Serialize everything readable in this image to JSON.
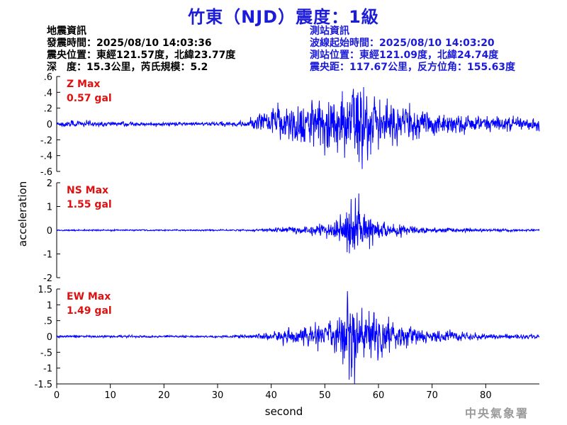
{
  "header": {
    "title": "竹東（NJD）震度：1級"
  },
  "event_info": {
    "heading": "地震資訊",
    "origin_time": "發震時間：2025/08/10 14:03:36",
    "epicenter": "震央位置：東經121.57度，北緯23.77度",
    "depth_magnitude": "深　度：15.3公里，芮氏規模：5.2"
  },
  "station_info": {
    "heading": "測站資訊",
    "wave_start": "波線起始時間：2025/08/10 14:03:20",
    "station_location": "測站位置：東經121.09度，北緯24.74度",
    "distance_azimuth": "震央距：117.67公里，反方位角：155.63度"
  },
  "watermark": "中央氣象署",
  "colors": {
    "trace": "#0000ff",
    "title": "#1b1bd9",
    "station_info": "#1b1bd9",
    "max_label": "#e01010",
    "axes": "#000000"
  },
  "chart_data": {
    "type": "line",
    "xlabel": "second",
    "ylabel": "acceleration",
    "xlim": [
      0,
      90
    ],
    "x_ticks": [
      0,
      10,
      20,
      30,
      40,
      50,
      60,
      70,
      80
    ],
    "grid": false,
    "panels": [
      {
        "component": "Z",
        "max_label": "Z Max",
        "max_value": "0.57 gal",
        "peak": 0.57,
        "ylim": [
          -0.6,
          0.6
        ],
        "y_ticks": [
          -0.6,
          -0.4,
          -0.2,
          0,
          0.2,
          0.4,
          0.6
        ],
        "noise": 0.02,
        "envelope": [
          [
            0,
            0.02
          ],
          [
            2,
            0.06
          ],
          [
            4,
            0.04
          ],
          [
            8,
            0.03
          ],
          [
            20,
            0.02
          ],
          [
            30,
            0.025
          ],
          [
            35,
            0.03
          ],
          [
            37,
            0.09
          ],
          [
            39,
            0.16
          ],
          [
            41,
            0.2
          ],
          [
            44,
            0.24
          ],
          [
            48,
            0.28
          ],
          [
            52,
            0.33
          ],
          [
            55,
            0.42
          ],
          [
            56.5,
            0.57
          ],
          [
            58,
            0.4
          ],
          [
            61,
            0.3
          ],
          [
            64,
            0.24
          ],
          [
            68,
            0.16
          ],
          [
            73,
            0.12
          ],
          [
            80,
            0.09
          ],
          [
            86,
            0.08
          ],
          [
            90,
            0.07
          ]
        ]
      },
      {
        "component": "NS",
        "max_label": "NS Max",
        "max_value": "1.55 gal",
        "peak": 1.55,
        "ylim": [
          -2,
          2
        ],
        "y_ticks": [
          -2,
          -1,
          0,
          1,
          2
        ],
        "noise": 0.04,
        "envelope": [
          [
            0,
            0.03
          ],
          [
            30,
            0.03
          ],
          [
            36,
            0.05
          ],
          [
            40,
            0.12
          ],
          [
            44,
            0.2
          ],
          [
            48,
            0.3
          ],
          [
            51,
            0.5
          ],
          [
            53,
            0.85
          ],
          [
            55,
            1.55
          ],
          [
            57,
            1.1
          ],
          [
            59,
            0.7
          ],
          [
            62,
            0.4
          ],
          [
            66,
            0.25
          ],
          [
            72,
            0.14
          ],
          [
            80,
            0.08
          ],
          [
            90,
            0.06
          ]
        ]
      },
      {
        "component": "EW",
        "max_label": "EW Max",
        "max_value": "1.49 gal",
        "peak": 1.49,
        "ylim": [
          -1.5,
          1.5
        ],
        "y_ticks": [
          -1.5,
          -1,
          -0.5,
          0,
          0.5,
          1,
          1.5
        ],
        "noise": 0.03,
        "envelope": [
          [
            0,
            0.04
          ],
          [
            30,
            0.04
          ],
          [
            36,
            0.06
          ],
          [
            39,
            0.12
          ],
          [
            42,
            0.22
          ],
          [
            46,
            0.3
          ],
          [
            50,
            0.45
          ],
          [
            52,
            0.7
          ],
          [
            54,
            1.3
          ],
          [
            55,
            1.49
          ],
          [
            57,
            1.0
          ],
          [
            60,
            0.75
          ],
          [
            63,
            0.5
          ],
          [
            67,
            0.3
          ],
          [
            72,
            0.2
          ],
          [
            80,
            0.1
          ],
          [
            90,
            0.08
          ]
        ]
      }
    ]
  }
}
